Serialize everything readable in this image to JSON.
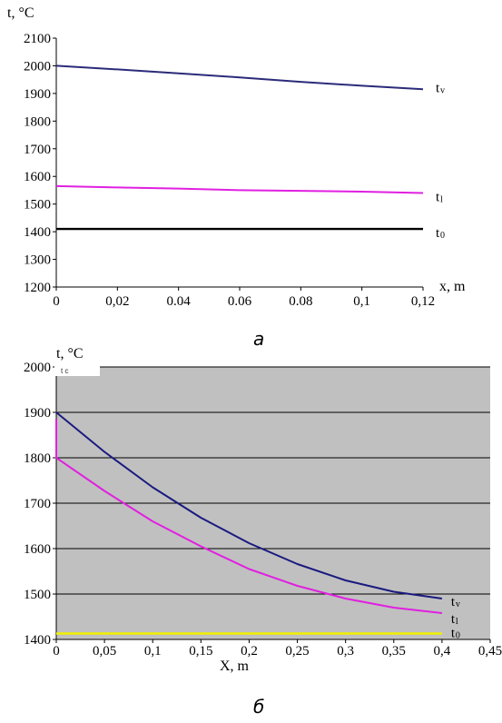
{
  "chart_data": [
    {
      "type": "line",
      "caption": "а",
      "ylabel": "t, °C",
      "xlabel": "x, m",
      "xlim": [
        0,
        0.12
      ],
      "ylim": [
        1200,
        2100
      ],
      "x_ticks": [
        0,
        0.02,
        0.04,
        0.06,
        0.08,
        0.1,
        0.12
      ],
      "x_tick_labels": [
        "0",
        "0,02",
        "0.04",
        "0.06",
        "0.08",
        "0,1",
        "0,12"
      ],
      "y_ticks": [
        1200,
        1300,
        1400,
        1500,
        1600,
        1700,
        1800,
        1900,
        2000,
        2100
      ],
      "y_tick_labels": [
        "1200",
        "1300",
        "1400",
        "1500",
        "1600",
        "1700",
        "1800",
        "1900",
        "2000",
        "2100"
      ],
      "grid": false,
      "series": [
        {
          "name": "tv",
          "label_main": "t",
          "label_sub": "v",
          "color": "#2b2b7a",
          "x": [
            0,
            0.02,
            0.04,
            0.06,
            0.08,
            0.1,
            0.12
          ],
          "y": [
            2000,
            1987,
            1973,
            1958,
            1942,
            1928,
            1915
          ]
        },
        {
          "name": "tl",
          "label_main": "t",
          "label_sub": "l",
          "color": "#e020e0",
          "x": [
            0,
            0.02,
            0.04,
            0.06,
            0.08,
            0.1,
            0.12
          ],
          "y": [
            1565,
            1560,
            1556,
            1550,
            1548,
            1545,
            1540
          ]
        },
        {
          "name": "t0",
          "label_main": "t",
          "label_sub": "0",
          "color": "#000000",
          "x": [
            0,
            0.12
          ],
          "y": [
            1410,
            1410
          ]
        }
      ]
    },
    {
      "type": "line",
      "caption": "б",
      "ylabel": "t, °C",
      "ylabel_small": "t c",
      "xlabel": "X, m",
      "xlim": [
        0,
        0.45
      ],
      "ylim": [
        1400,
        2000
      ],
      "x_ticks": [
        0,
        0.05,
        0.1,
        0.15,
        0.2,
        0.25,
        0.3,
        0.35,
        0.4,
        0.45
      ],
      "x_tick_labels": [
        "0",
        "0,05",
        "0,1",
        "0,15",
        "0,2",
        "0,25",
        "0,3",
        "0,35",
        "0,4",
        "0,45"
      ],
      "y_ticks": [
        1400,
        1500,
        1600,
        1700,
        1800,
        1900,
        2000
      ],
      "y_tick_labels": [
        "1400",
        "1500",
        "1600",
        "1700",
        "1800",
        "1900",
        "2000"
      ],
      "grid": true,
      "plot_bg": "#c0c0c0",
      "series": [
        {
          "name": "tv",
          "label_main": "t",
          "label_sub": "v",
          "color": "#1a1a80",
          "x": [
            0,
            0.05,
            0.1,
            0.15,
            0.2,
            0.25,
            0.3,
            0.35,
            0.4
          ],
          "y": [
            1900,
            1813,
            1735,
            1668,
            1612,
            1566,
            1530,
            1505,
            1490
          ]
        },
        {
          "name": "tl",
          "label_main": "t",
          "label_sub": "l",
          "color": "#e020e0",
          "x": [
            0,
            0,
            0.05,
            0.1,
            0.15,
            0.2,
            0.25,
            0.3,
            0.35,
            0.4
          ],
          "y": [
            1885,
            1800,
            1727,
            1660,
            1605,
            1555,
            1518,
            1490,
            1470,
            1458
          ]
        },
        {
          "name": "t0",
          "label_main": "t",
          "label_sub": "0",
          "color": "#f0f000",
          "x": [
            0,
            0.4
          ],
          "y": [
            1413,
            1413
          ]
        }
      ]
    }
  ]
}
